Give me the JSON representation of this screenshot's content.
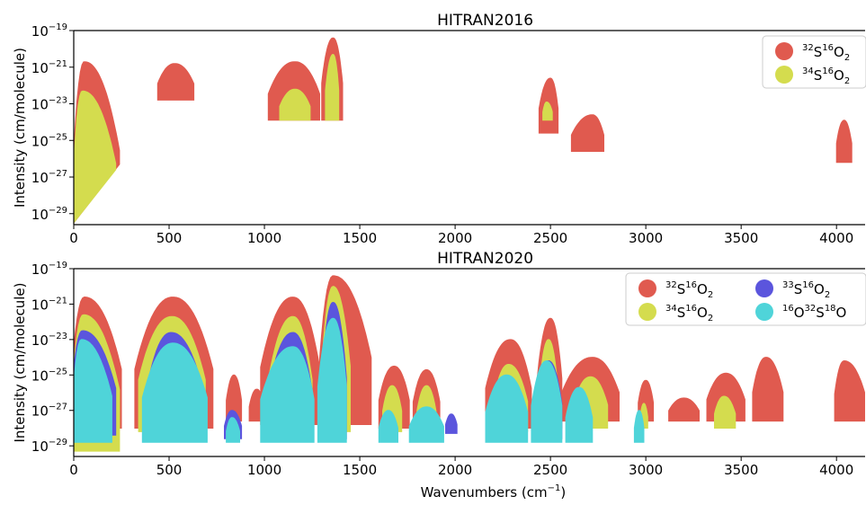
{
  "chart_data": [
    {
      "type": "area",
      "title": "HITRAN2016",
      "xlabel": "",
      "ylabel": "Intensity (cm/molecule)",
      "xlim": [
        0,
        4150
      ],
      "ylim_log10": [
        -29.6,
        -19
      ],
      "x_ticks": [
        "0",
        "500",
        "1000",
        "1500",
        "2000",
        "2500",
        "3000",
        "3500",
        "4000"
      ],
      "y_ticks": [
        {
          "base": "10",
          "exp": "−19",
          "value": -19
        },
        {
          "base": "10",
          "exp": "−21",
          "value": -21
        },
        {
          "base": "10",
          "exp": "−23",
          "value": -23
        },
        {
          "base": "10",
          "exp": "−25",
          "value": -25
        },
        {
          "base": "10",
          "exp": "−27",
          "value": -27
        },
        {
          "base": "10",
          "exp": "−29",
          "value": -29
        }
      ],
      "legend_position": "top-right",
      "legend_columns": 1,
      "series": [
        {
          "name": "32S16O2",
          "label_parts": [
            "32",
            "S",
            "16",
            "O",
            "2"
          ],
          "color": "#e05a4f",
          "bands": [
            {
              "x0": 0,
              "x1": 240,
              "peak_x": 55,
              "top": -20.7,
              "floor": -29.5,
              "floor_x1": -26.3
            },
            {
              "x0": 440,
              "x1": 630,
              "peak_x": 530,
              "top": -20.8,
              "floor": -22.8
            },
            {
              "x0": 1020,
              "x1": 1290,
              "peak_x": 1160,
              "top": -20.7,
              "floor": -23.9
            },
            {
              "x0": 1300,
              "x1": 1410,
              "peak_x": 1360,
              "top": -19.4,
              "floor": -23.9
            },
            {
              "x0": 2440,
              "x1": 2540,
              "peak_x": 2500,
              "top": -21.6,
              "floor": -24.6
            },
            {
              "x0": 2610,
              "x1": 2780,
              "peak_x": 2720,
              "top": -23.6,
              "floor": -25.6
            },
            {
              "x0": 4000,
              "x1": 4080,
              "peak_x": 4040,
              "top": -23.9,
              "floor": -26.2
            }
          ]
        },
        {
          "name": "34S16O2",
          "label_parts": [
            "34",
            "S",
            "16",
            "O",
            "2"
          ],
          "color": "#d4dc4e",
          "bands": [
            {
              "x0": 0,
              "x1": 220,
              "peak_x": 45,
              "top": -22.3,
              "floor": -29.5,
              "floor_x1": -26.6
            },
            {
              "x0": 1080,
              "x1": 1240,
              "peak_x": 1160,
              "top": -22.2,
              "floor": -23.9
            },
            {
              "x0": 1320,
              "x1": 1390,
              "peak_x": 1360,
              "top": -20.3,
              "floor": -23.9
            },
            {
              "x0": 2460,
              "x1": 2510,
              "peak_x": 2480,
              "top": -22.9,
              "floor": -23.9
            }
          ]
        }
      ]
    },
    {
      "type": "area",
      "title": "HITRAN2020",
      "xlabel": "Wavenumbers (cm−1)",
      "xlabel_parts": [
        "Wavenumbers (cm",
        "−1",
        ")"
      ],
      "ylabel": "Intensity (cm/molecule)",
      "xlim": [
        0,
        4150
      ],
      "ylim_log10": [
        -29.6,
        -19
      ],
      "x_ticks": [
        "0",
        "500",
        "1000",
        "1500",
        "2000",
        "2500",
        "3000",
        "3500",
        "4000"
      ],
      "y_ticks": [
        {
          "base": "10",
          "exp": "−19",
          "value": -19
        },
        {
          "base": "10",
          "exp": "−21",
          "value": -21
        },
        {
          "base": "10",
          "exp": "−23",
          "value": -23
        },
        {
          "base": "10",
          "exp": "−25",
          "value": -25
        },
        {
          "base": "10",
          "exp": "−27",
          "value": -27
        },
        {
          "base": "10",
          "exp": "−29",
          "value": -29
        }
      ],
      "legend_position": "top-right",
      "legend_columns": 2,
      "series": [
        {
          "name": "32S16O2",
          "label_parts": [
            "32",
            "S",
            "16",
            "O",
            "2"
          ],
          "color": "#e05a4f",
          "bands": [
            {
              "x0": -10,
              "x1": 250,
              "peak_x": 55,
              "top": -20.6,
              "floor": -28.0
            },
            {
              "x0": 320,
              "x1": 730,
              "peak_x": 520,
              "top": -20.6,
              "floor": -28.0
            },
            {
              "x0": 800,
              "x1": 880,
              "peak_x": 840,
              "top": -25.0,
              "floor": -27.6
            },
            {
              "x0": 920,
              "x1": 1000,
              "peak_x": 960,
              "top": -25.8,
              "floor": -27.6
            },
            {
              "x0": 980,
              "x1": 1290,
              "peak_x": 1150,
              "top": -20.6,
              "floor": -27.8
            },
            {
              "x0": 1290,
              "x1": 1560,
              "peak_x": 1360,
              "top": -19.4,
              "floor": -27.8
            },
            {
              "x0": 1600,
              "x1": 1760,
              "peak_x": 1680,
              "top": -24.5,
              "floor": -28.0
            },
            {
              "x0": 1780,
              "x1": 1920,
              "peak_x": 1850,
              "top": -24.7,
              "floor": -28.0
            },
            {
              "x0": 2160,
              "x1": 2400,
              "peak_x": 2290,
              "top": -23.0,
              "floor": -28.0
            },
            {
              "x0": 2430,
              "x1": 2560,
              "peak_x": 2500,
              "top": -21.8,
              "floor": -28.0
            },
            {
              "x0": 2560,
              "x1": 2860,
              "peak_x": 2720,
              "top": -24.0,
              "floor": -27.6
            },
            {
              "x0": 2960,
              "x1": 3040,
              "peak_x": 3000,
              "top": -25.3,
              "floor": -27.6
            },
            {
              "x0": 3120,
              "x1": 3280,
              "peak_x": 3200,
              "top": -26.3,
              "floor": -27.6
            },
            {
              "x0": 3320,
              "x1": 3520,
              "peak_x": 3420,
              "top": -24.9,
              "floor": -27.6
            },
            {
              "x0": 3560,
              "x1": 3720,
              "peak_x": 3630,
              "top": -24.0,
              "floor": -27.6
            },
            {
              "x0": 3990,
              "x1": 4150,
              "peak_x": 4040,
              "top": -24.2,
              "floor": -27.6
            }
          ]
        },
        {
          "name": "34S16O2",
          "label_parts": [
            "34",
            "S",
            "16",
            "O",
            "2"
          ],
          "color": "#d4dc4e",
          "bands": [
            {
              "x0": -10,
              "x1": 240,
              "peak_x": 50,
              "top": -21.6,
              "floor": -29.3
            },
            {
              "x0": 340,
              "x1": 690,
              "peak_x": 515,
              "top": -21.7,
              "floor": -28.2
            },
            {
              "x0": 1020,
              "x1": 1250,
              "peak_x": 1150,
              "top": -21.7,
              "floor": -28.2
            },
            {
              "x0": 1300,
              "x1": 1450,
              "peak_x": 1360,
              "top": -20.0,
              "floor": -28.2
            },
            {
              "x0": 1620,
              "x1": 1720,
              "peak_x": 1670,
              "top": -25.6,
              "floor": -28.2
            },
            {
              "x0": 1800,
              "x1": 1900,
              "peak_x": 1850,
              "top": -25.6,
              "floor": -28.2
            },
            {
              "x0": 2200,
              "x1": 2380,
              "peak_x": 2280,
              "top": -24.4,
              "floor": -28.2
            },
            {
              "x0": 2440,
              "x1": 2540,
              "peak_x": 2490,
              "top": -23.0,
              "floor": -28.2
            },
            {
              "x0": 2620,
              "x1": 2800,
              "peak_x": 2710,
              "top": -25.1,
              "floor": -28.0
            },
            {
              "x0": 2970,
              "x1": 3010,
              "peak_x": 2990,
              "top": -26.6,
              "floor": -28.0
            },
            {
              "x0": 3360,
              "x1": 3470,
              "peak_x": 3410,
              "top": -26.2,
              "floor": -28.0
            }
          ]
        },
        {
          "name": "33S16O2",
          "label_parts": [
            "33",
            "S",
            "16",
            "O",
            "2"
          ],
          "color": "#5b55dd",
          "bands": [
            {
              "x0": -10,
              "x1": 220,
              "peak_x": 45,
              "top": -22.5,
              "floor": -28.4
            },
            {
              "x0": 380,
              "x1": 680,
              "peak_x": 510,
              "top": -22.6,
              "floor": -28.6
            },
            {
              "x0": 790,
              "x1": 880,
              "peak_x": 830,
              "top": -27.0,
              "floor": -28.6
            },
            {
              "x0": 1020,
              "x1": 1250,
              "peak_x": 1150,
              "top": -22.6,
              "floor": -28.6
            },
            {
              "x0": 1300,
              "x1": 1430,
              "peak_x": 1360,
              "top": -20.9,
              "floor": -28.6
            },
            {
              "x0": 1950,
              "x1": 2010,
              "peak_x": 1980,
              "top": -27.2,
              "floor": -28.3
            },
            {
              "x0": 2410,
              "x1": 2560,
              "peak_x": 2490,
              "top": -24.2,
              "floor": -28.6
            }
          ]
        },
        {
          "name": "16O32S18O",
          "label_parts": [
            "16",
            "O",
            "32",
            "S",
            "18",
            "O"
          ],
          "color": "#4fd4d9",
          "bands": [
            {
              "x0": -5,
              "x1": 200,
              "peak_x": 40,
              "top": -23.0,
              "floor": -28.8
            },
            {
              "x0": 360,
              "x1": 700,
              "peak_x": 520,
              "top": -23.2,
              "floor": -28.8
            },
            {
              "x0": 800,
              "x1": 870,
              "peak_x": 830,
              "top": -27.4,
              "floor": -28.8
            },
            {
              "x0": 980,
              "x1": 1260,
              "peak_x": 1150,
              "top": -23.4,
              "floor": -28.8
            },
            {
              "x0": 1280,
              "x1": 1430,
              "peak_x": 1360,
              "top": -21.8,
              "floor": -28.8
            },
            {
              "x0": 1600,
              "x1": 1700,
              "peak_x": 1650,
              "top": -27.0,
              "floor": -28.8
            },
            {
              "x0": 1760,
              "x1": 1940,
              "peak_x": 1850,
              "top": -26.8,
              "floor": -28.8
            },
            {
              "x0": 2160,
              "x1": 2380,
              "peak_x": 2270,
              "top": -25.0,
              "floor": -28.8
            },
            {
              "x0": 2400,
              "x1": 2560,
              "peak_x": 2480,
              "top": -24.2,
              "floor": -28.8
            },
            {
              "x0": 2580,
              "x1": 2720,
              "peak_x": 2650,
              "top": -25.7,
              "floor": -28.8
            },
            {
              "x0": 2940,
              "x1": 2990,
              "peak_x": 2965,
              "top": -27.0,
              "floor": -28.8
            }
          ]
        }
      ]
    }
  ]
}
